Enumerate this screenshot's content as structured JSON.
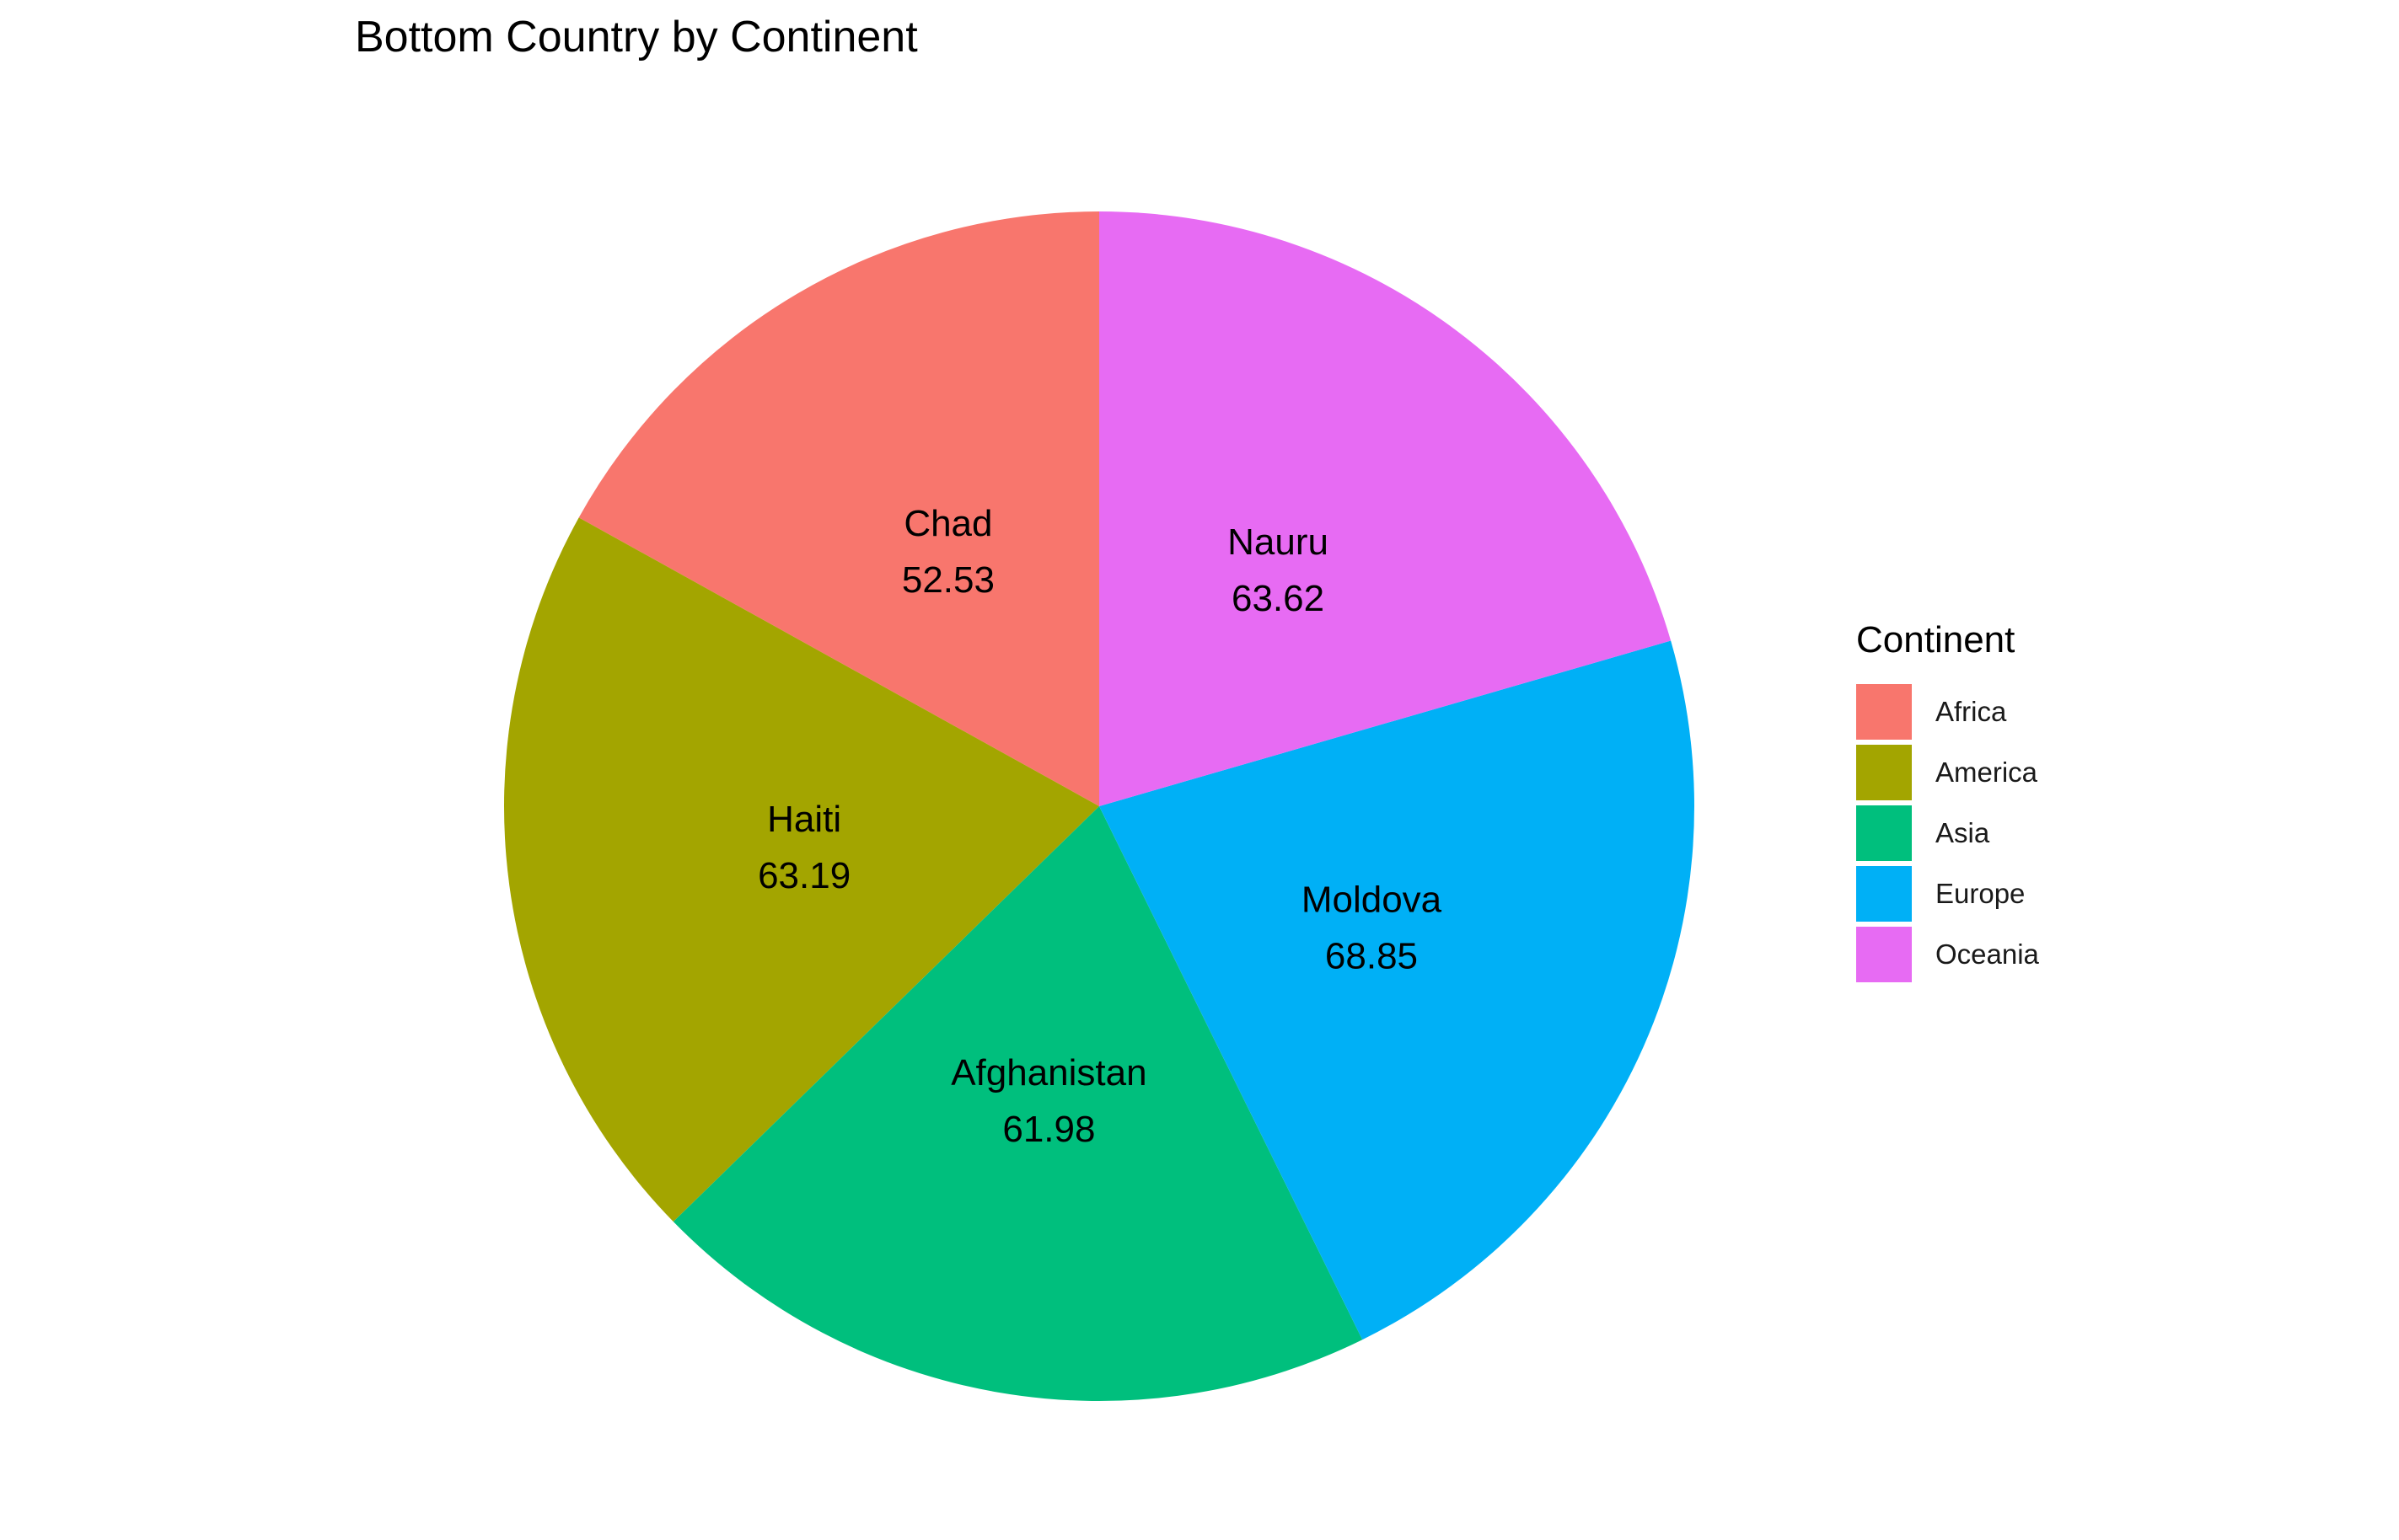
{
  "chart_data": {
    "type": "pie",
    "title": "Bottom Country by Continent",
    "legend_title": "Continent",
    "legend_position": "right",
    "slices": [
      {
        "continent": "Africa",
        "country": "Chad",
        "value": 52.53,
        "value_label": "52.53",
        "color": "#F8766D"
      },
      {
        "continent": "America",
        "country": "Haiti",
        "value": 63.19,
        "value_label": "63.19",
        "color": "#A3A500"
      },
      {
        "continent": "Asia",
        "country": "Afghanistan",
        "value": 61.98,
        "value_label": "61.98",
        "color": "#00BF7D"
      },
      {
        "continent": "Europe",
        "country": "Moldova",
        "value": 68.85,
        "value_label": "68.85",
        "color": "#00B0F6"
      },
      {
        "continent": "Oceania",
        "country": "Nauru",
        "value": 63.62,
        "value_label": "63.62",
        "color": "#E76BF3"
      }
    ]
  }
}
